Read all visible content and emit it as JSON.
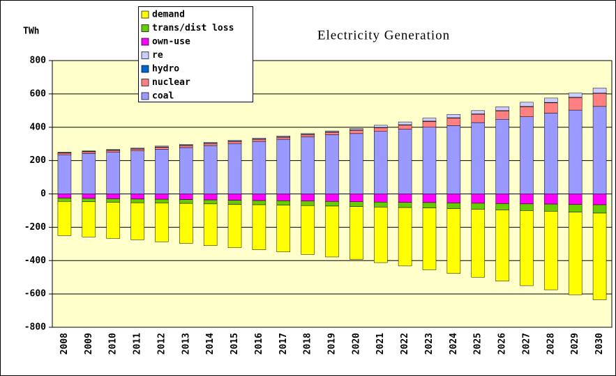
{
  "chart_data": {
    "type": "stacked-bar",
    "title": "Electricity Generation",
    "y_label": "TWh",
    "categories": [
      "2008",
      "2009",
      "2010",
      "2011",
      "2012",
      "2013",
      "2014",
      "2015",
      "2016",
      "2017",
      "2018",
      "2019",
      "2020",
      "2021",
      "2022",
      "2023",
      "2024",
      "2025",
      "2026",
      "2027",
      "2028",
      "2029",
      "2030"
    ],
    "series": [
      {
        "name": "demand",
        "color": "#ffff00",
        "values": [
          -205,
          -211,
          -217,
          -222,
          -233,
          -240,
          -250,
          -259,
          -270,
          -281,
          -293,
          -305,
          -317,
          -333,
          -350,
          -371,
          -389,
          -408,
          -427,
          -450,
          -471,
          -496,
          -520
        ]
      },
      {
        "name": "trans/dist loss",
        "color": "#66cc00",
        "values": [
          -20,
          -20,
          -21,
          -22,
          -22,
          -23,
          -24,
          -25,
          -25,
          -26,
          -27,
          -28,
          -29,
          -30,
          -31,
          -32,
          -34,
          -36,
          -38,
          -40,
          -43,
          -46,
          -50
        ]
      },
      {
        "name": "own-use",
        "color": "#ff00ff",
        "values": [
          -25,
          -27,
          -29,
          -31,
          -32,
          -34,
          -36,
          -38,
          -40,
          -41,
          -43,
          -45,
          -47,
          -49,
          -51,
          -52,
          -54,
          -56,
          -58,
          -60,
          -61,
          -63,
          -65
        ]
      },
      {
        "name": "re",
        "color": "#ccccff",
        "values": [
          3,
          3,
          4,
          4,
          5,
          5,
          6,
          6,
          6,
          6,
          6,
          6,
          9,
          13,
          17,
          18,
          20,
          20,
          23,
          25,
          26,
          25,
          30
        ]
      },
      {
        "name": "hydro",
        "color": "#0066cc",
        "values": [
          2,
          2,
          2,
          2,
          2,
          2,
          2,
          2,
          2,
          2,
          2,
          2,
          2,
          2,
          2,
          2,
          2,
          2,
          2,
          2,
          2,
          2,
          2
        ]
      },
      {
        "name": "nuclear",
        "color": "#ff8080",
        "values": [
          10,
          10,
          11,
          11,
          12,
          12,
          12,
          12,
          12,
          12,
          13,
          15,
          20,
          22,
          25,
          35,
          45,
          50,
          50,
          60,
          62,
          75,
          78
        ]
      },
      {
        "name": "coal",
        "color": "#9999ff",
        "values": [
          235,
          243,
          250,
          258,
          268,
          278,
          290,
          302,
          315,
          328,
          342,
          355,
          362,
          375,
          388,
          400,
          410,
          428,
          448,
          463,
          485,
          503,
          525
        ]
      }
    ],
    "ylim": [
      -800,
      800
    ],
    "yticks": [
      -800,
      -600,
      -400,
      -200,
      0,
      200,
      400,
      600,
      800
    ],
    "grid": true,
    "plot_background": "#ffffcc"
  }
}
